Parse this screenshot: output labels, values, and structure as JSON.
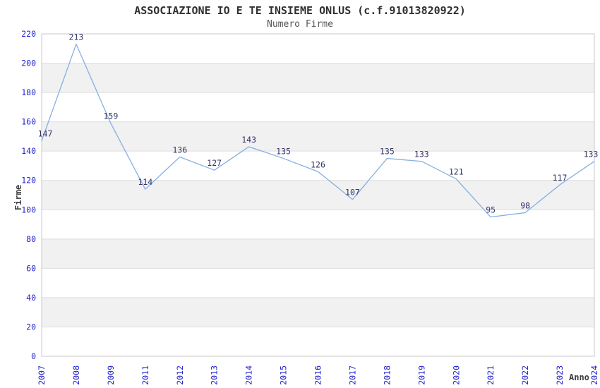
{
  "chart_data": {
    "type": "line",
    "title": "ASSOCIAZIONE IO E TE INSIEME ONLUS (c.f.91013820922)",
    "subtitle": "Numero Firme",
    "xlabel": "Anno",
    "ylabel": "Firme",
    "categories": [
      "2007",
      "2008",
      "2009",
      "2011",
      "2012",
      "2013",
      "2014",
      "2015",
      "2016",
      "2017",
      "2018",
      "2019",
      "2020",
      "2021",
      "2022",
      "2023",
      "2024"
    ],
    "series": [
      {
        "name": "Numero Firme",
        "values": [
          147,
          213,
          159,
          114,
          136,
          127,
          143,
          135,
          126,
          107,
          135,
          133,
          121,
          95,
          98,
          117,
          133
        ]
      }
    ],
    "ylim": [
      0,
      220
    ],
    "ytick_step": 20,
    "yticks": [
      0,
      20,
      40,
      60,
      80,
      100,
      120,
      140,
      160,
      180,
      200,
      220
    ],
    "grid": "horizontal-bands-alternating",
    "legend": "none",
    "colors": {
      "line": "#85afe2",
      "data_label": "#333366",
      "tick_label": "#2222cc",
      "band_gray": "#f1f1f1",
      "grid_line": "#dedede",
      "plot_border": "#c8c8c8",
      "title": "#303030",
      "subtitle": "#555555",
      "axis_label": "#3d3d3d",
      "background": "#ffffff"
    }
  }
}
